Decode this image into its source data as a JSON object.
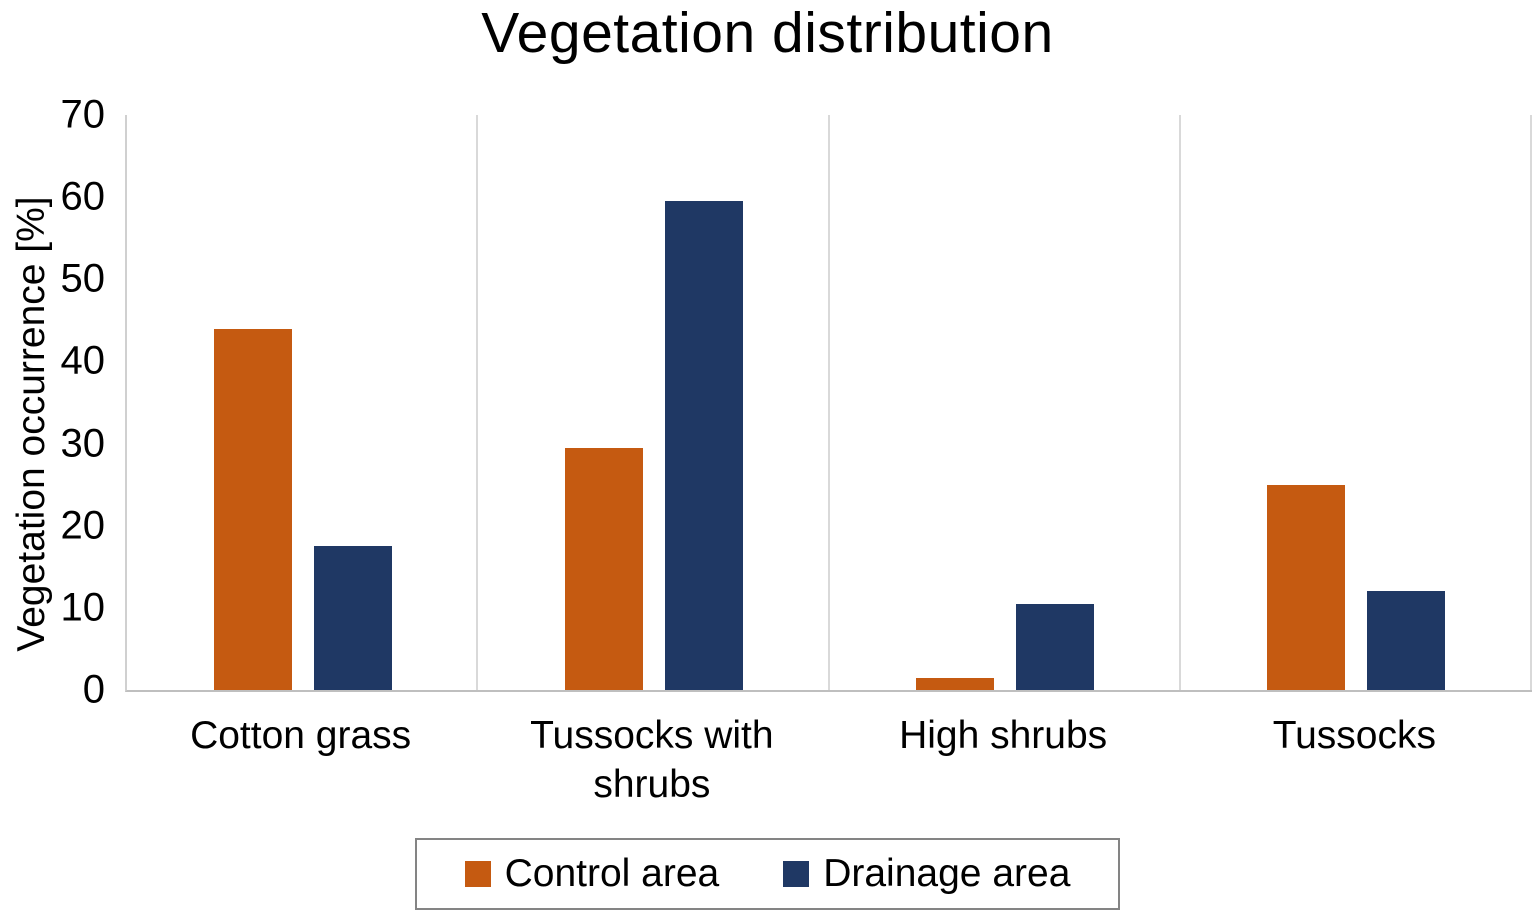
{
  "title": "Vegetation distribution",
  "chart_data": {
    "type": "bar",
    "title": "Vegetation distribution",
    "xlabel": "",
    "ylabel": "Vegetation occurrence [%]",
    "ylim": [
      0,
      70
    ],
    "ytick_step": 10,
    "grid": "vertical-category-separators-only",
    "legend_position": "bottom-center-boxed",
    "categories": [
      "Cotton grass",
      "Tussocks with shrubs",
      "High shrubs",
      "Tussocks"
    ],
    "series": [
      {
        "name": "Control area",
        "color": "#C55A11",
        "values": [
          44,
          29.5,
          1.5,
          25
        ]
      },
      {
        "name": "Drainage area",
        "color": "#1F3864",
        "values": [
          17.5,
          59.5,
          10.5,
          12
        ]
      }
    ],
    "axis_colors": {
      "gridline": "#D9D9D9",
      "axis_line": "#BFBFBF",
      "legend_border": "#848484",
      "text": "#000000"
    }
  }
}
